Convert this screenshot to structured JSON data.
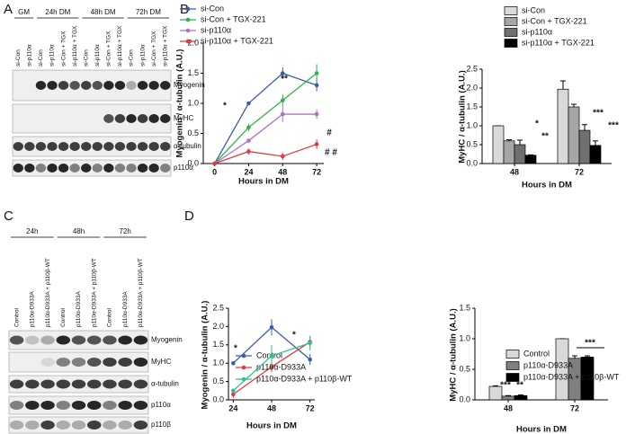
{
  "panel_labels": [
    "A",
    "B",
    "C",
    "D"
  ],
  "blots": [
    {
      "groups": [
        "GM",
        "24h DM",
        "48h DM",
        "72h DM"
      ],
      "lanes": [
        "si-Con",
        "si-p110α",
        "si-Con",
        "si-p110α",
        "si-Con + TGX",
        "si-p110α + TGX",
        "si-Con",
        "si-p110α",
        "si-Con + TGX",
        "si-p110α + TGX",
        "si-Con",
        "si-p110α",
        "si-Con + TGX",
        "si-p110α + TGX"
      ],
      "proteins": [
        "Myogenin",
        "MyHC",
        "α-tubulin",
        "p110α"
      ]
    },
    {
      "groups": [
        "24h",
        "48h",
        "72h"
      ],
      "lanes": [
        "Control",
        "p110α-D933A",
        "p110α-D933A + p110β-WT",
        "Control",
        "p110α-D933A",
        "p110α-D933A + p110β-WT",
        "Control",
        "p110α-D933A",
        "p110α-D933A + p110β-WT"
      ],
      "proteins": [
        "Myogenin",
        "MyHC",
        "α-tubulin",
        "p110α",
        "p110β"
      ]
    }
  ],
  "chart_data": [
    {
      "type": "line",
      "x": [
        0,
        24,
        48,
        72
      ],
      "xlim": [
        -8,
        77
      ],
      "xticks": [
        0,
        24,
        48,
        72
      ],
      "ylim": [
        0,
        2
      ],
      "yticks": [
        {
          "value": 0,
          "label": "0.0"
        },
        {
          "value": 0.5,
          "label": "0.5"
        },
        {
          "value": 1,
          "label": "1.0"
        },
        {
          "value": 1.5,
          "label": "1.5"
        },
        {
          "value": 2,
          "label": "2.0"
        }
      ],
      "x_label": "Hours in DM",
      "y_label": "Myogenin / α-tubulin (A.U.)",
      "series": [
        {
          "name": "si-Con",
          "color": "#3a5fa8",
          "values": [
            0,
            1.0,
            1.5,
            1.3
          ],
          "errors": [
            0,
            0.03,
            0.1,
            0.1
          ]
        },
        {
          "name": "si-Con + TGX-221",
          "color": "#2db34a",
          "values": [
            0,
            0.6,
            1.05,
            1.5
          ],
          "errors": [
            0,
            0.06,
            0.1,
            0.15
          ]
        },
        {
          "name": "si-p110α",
          "color": "#b46fc6",
          "values": [
            0,
            0.38,
            0.82,
            0.82
          ],
          "errors": [
            0,
            0.03,
            0.13,
            0.08
          ]
        },
        {
          "name": "si-p110α + TGX-221",
          "color": "#e8383d",
          "values": [
            0,
            0.2,
            0.12,
            0.32
          ],
          "errors": [
            0,
            0.05,
            0.06,
            0.08
          ]
        }
      ],
      "annotations": [
        "*",
        "**",
        "#",
        "# #"
      ]
    },
    {
      "type": "bar",
      "categories": [
        "48",
        "72"
      ],
      "ylim": [
        0,
        2.5
      ],
      "yticks": [
        {
          "value": 0,
          "label": "0.0"
        },
        {
          "value": 0.5,
          "label": "0.5"
        },
        {
          "value": 1,
          "label": "1.0"
        },
        {
          "value": 1.5,
          "label": "1.5"
        },
        {
          "value": 2,
          "label": "2.0"
        },
        {
          "value": 2.5,
          "label": "2.5"
        }
      ],
      "x_label": "Hours in DM",
      "y_label": "MyHC / α-tubulin (A.U.)",
      "series": [
        {
          "name": "si-Con",
          "color": "#d9d9d9",
          "values": [
            1.0,
            1.97
          ],
          "errors": [
            0,
            0.22
          ]
        },
        {
          "name": "si-Con + TGX-221",
          "color": "#a6a6a6",
          "values": [
            0.6,
            1.5
          ],
          "errors": [
            0.03,
            0.07
          ]
        },
        {
          "name": "si-p110α",
          "color": "#707070",
          "values": [
            0.5,
            0.88
          ],
          "errors": [
            0.12,
            0.15
          ]
        },
        {
          "name": "si-p110α + TGX-221",
          "color": "#000000",
          "values": [
            0.22,
            0.48
          ],
          "errors": [
            0.01,
            0.12
          ]
        }
      ],
      "annotations": [
        "*",
        "**",
        "***",
        "***"
      ]
    },
    {
      "type": "line",
      "x": [
        24,
        48,
        72
      ],
      "xlim": [
        21,
        75
      ],
      "xticks": [
        24,
        48,
        72
      ],
      "ylim": [
        0,
        2.5
      ],
      "yticks": [
        {
          "value": 0,
          "label": "0.0"
        },
        {
          "value": 0.5,
          "label": "0.5"
        },
        {
          "value": 1,
          "label": "1.0"
        },
        {
          "value": 1.5,
          "label": "1.5"
        },
        {
          "value": 2,
          "label": "2.0"
        },
        {
          "value": 2.5,
          "label": "2.5"
        }
      ],
      "x_label": "Hours in DM",
      "y_label": "Myogenin / α-tubulin (A.U.)",
      "series": [
        {
          "name": "Control",
          "color": "#3a5fa8",
          "values": [
            1.0,
            1.98,
            1.1
          ],
          "errors": [
            0.02,
            0.22,
            0.15
          ]
        },
        {
          "name": "p110α-D933A",
          "color": "#e8383d",
          "values": [
            0.15,
            0.9,
            1.58
          ],
          "errors": [
            0.1,
            0.15,
            0.15
          ]
        },
        {
          "name": "p110α-D933A + p110β-WT",
          "color": "#2dbf8f",
          "values": [
            0.25,
            1.2,
            1.55
          ],
          "errors": [
            0.05,
            0.3,
            0.2
          ]
        }
      ],
      "annotations": [
        "*",
        "*"
      ]
    },
    {
      "type": "bar",
      "categories": [
        "48",
        "72"
      ],
      "ylim": [
        0,
        1.5
      ],
      "yticks": [
        {
          "value": 0,
          "label": "0.0"
        },
        {
          "value": 0.5,
          "label": "0.5"
        },
        {
          "value": 1,
          "label": "1.0"
        },
        {
          "value": 1.5,
          "label": "1.5"
        }
      ],
      "x_label": "Hours in DM",
      "y_label": "MyHC / α-tubulin (A.U.)",
      "series": [
        {
          "name": "Control",
          "color": "#d9d9d9",
          "values": [
            0.22,
            1.0
          ],
          "errors": [
            0.01,
            0
          ]
        },
        {
          "name": "p110α-D933A",
          "color": "#808080",
          "values": [
            0.06,
            0.68
          ],
          "errors": [
            0.01,
            0.04
          ]
        },
        {
          "name": "p110α-D933A + p110β-WT",
          "color": "#000000",
          "values": [
            0.07,
            0.7
          ],
          "errors": [
            0.01,
            0.02
          ]
        }
      ],
      "annotations": [
        "***",
        "**",
        "***"
      ]
    }
  ]
}
